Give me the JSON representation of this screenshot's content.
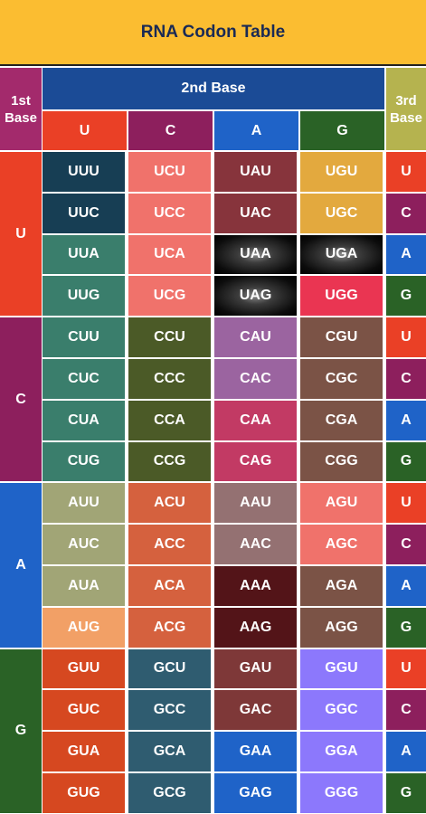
{
  "title": "RNA Codon Table",
  "headers": {
    "first": "1st\nBase",
    "second": "2nd Base",
    "third": "3rd\nBase"
  },
  "colors": {
    "title_bg": "#fbbd31",
    "title_text": "#1a2a55",
    "first_header": "#a32a6c",
    "second_header": "#1b4b96",
    "third_header": "#b5b34f",
    "base_U": "#ea4026",
    "base_C": "#8d1f5d",
    "base_A": "#1f63c8",
    "base_G": "#2a6226"
  },
  "second_bases": [
    "U",
    "C",
    "A",
    "G"
  ],
  "first_bases": [
    "U",
    "C",
    "A",
    "G"
  ],
  "third_bases": [
    "U",
    "C",
    "A",
    "G"
  ],
  "codons": [
    [
      [
        "UUU",
        "UCU",
        "UAU",
        "UGU"
      ],
      [
        "UUC",
        "UCC",
        "UAC",
        "UGC"
      ],
      [
        "UUA",
        "UCA",
        "UAA",
        "UGA"
      ],
      [
        "UUG",
        "UCG",
        "UAG",
        "UGG"
      ]
    ],
    [
      [
        "CUU",
        "CCU",
        "CAU",
        "CGU"
      ],
      [
        "CUC",
        "CCC",
        "CAC",
        "CGC"
      ],
      [
        "CUA",
        "CCA",
        "CAA",
        "CGA"
      ],
      [
        "CUG",
        "CCG",
        "CAG",
        "CGG"
      ]
    ],
    [
      [
        "AUU",
        "ACU",
        "AAU",
        "AGU"
      ],
      [
        "AUC",
        "ACC",
        "AAC",
        "AGC"
      ],
      [
        "AUA",
        "ACA",
        "AAA",
        "AGA"
      ],
      [
        "AUG",
        "ACG",
        "AAG",
        "AGG"
      ]
    ],
    [
      [
        "GUU",
        "GCU",
        "GAU",
        "GGU"
      ],
      [
        "GUC",
        "GCC",
        "GAC",
        "GGC"
      ],
      [
        "GUA",
        "GCA",
        "GAA",
        "GGA"
      ],
      [
        "GUG",
        "GCG",
        "GAG",
        "GGG"
      ]
    ]
  ],
  "codon_colors": [
    [
      [
        "#173e54",
        "#f0726b",
        "#87343c",
        "#e3a93e"
      ],
      [
        "#173e54",
        "#f0726b",
        "#87343c",
        "#e3a93e"
      ],
      [
        "#3a7e6c",
        "#f0726b",
        "stop",
        "stop"
      ],
      [
        "#3a7e6c",
        "#f0726b",
        "stop",
        "#ea3552"
      ]
    ],
    [
      [
        "#3a7e6c",
        "#4b5a27",
        "#9b64a0",
        "#7b5346"
      ],
      [
        "#3a7e6c",
        "#4b5a27",
        "#9b64a0",
        "#7b5346"
      ],
      [
        "#3a7e6c",
        "#4b5a27",
        "#c23a64",
        "#7b5346"
      ],
      [
        "#3a7e6c",
        "#4b5a27",
        "#c23a64",
        "#7b5346"
      ]
    ],
    [
      [
        "#a1a576",
        "#d5613e",
        "#947172",
        "#f0726b"
      ],
      [
        "#a1a576",
        "#d5613e",
        "#947172",
        "#f0726b"
      ],
      [
        "#a1a576",
        "#d5613e",
        "#531418",
        "#7b5346"
      ],
      [
        "#f2a066",
        "#d5613e",
        "#531418",
        "#7b5346"
      ]
    ],
    [
      [
        "#d64820",
        "#2f5c70",
        "#7e3838",
        "#8c78fc"
      ],
      [
        "#d64820",
        "#2f5c70",
        "#7e3838",
        "#8c78fc"
      ],
      [
        "#d64820",
        "#2f5c70",
        "#1f63c8",
        "#8c78fc"
      ],
      [
        "#d64820",
        "#2f5c70",
        "#1f63c8",
        "#8c78fc"
      ]
    ]
  ]
}
